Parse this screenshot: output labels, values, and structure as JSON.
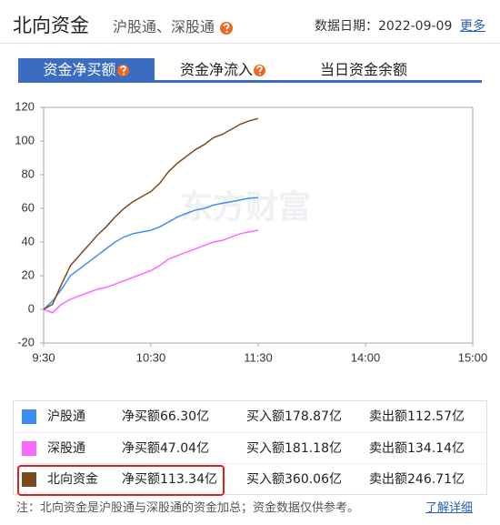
{
  "header": {
    "title": "北向资金",
    "subtitle": "沪股通、深股通",
    "date": "数据日期：2022-09-09",
    "more": "更多"
  },
  "tabs": [
    "资金净买额",
    "资金净流入",
    "当日资金余额"
  ],
  "chart_data": {
    "type": "line",
    "watermark": "东方财富",
    "x": [
      "9:30",
      "9:35",
      "9:40",
      "9:45",
      "9:50",
      "9:55",
      "10:00",
      "10:05",
      "10:10",
      "10:15",
      "10:20",
      "10:25",
      "10:30",
      "10:35",
      "10:40",
      "10:45",
      "10:50",
      "10:55",
      "11:00",
      "11:05",
      "11:10",
      "11:15",
      "11:20",
      "11:25",
      "11:30"
    ],
    "xlim": [
      "9:30",
      "15:00"
    ],
    "xticks": [
      "9:30",
      "10:30",
      "11:30",
      "14:00",
      "15:00"
    ],
    "ylim": [
      -20,
      120
    ],
    "yticks": [
      -20,
      0,
      20,
      40,
      60,
      80,
      100,
      120
    ],
    "series": [
      {
        "name": "沪股通",
        "color": "#3d8ef0",
        "values": [
          0,
          5,
          12,
          20,
          24,
          28,
          32,
          36,
          40,
          43,
          45,
          46,
          47,
          49,
          52,
          55,
          57,
          59,
          60,
          62,
          63,
          64,
          65,
          66,
          66.3
        ]
      },
      {
        "name": "深股通",
        "color": "#ff66ff",
        "values": [
          0,
          -2,
          3,
          6,
          8,
          10,
          12,
          13,
          15,
          17,
          19,
          21,
          23,
          26,
          30,
          32,
          34,
          36,
          38,
          40,
          41,
          43,
          45,
          46,
          47.04
        ]
      },
      {
        "name": "北向资金",
        "color": "#7b4a1e",
        "values": [
          0,
          3,
          15,
          26,
          32,
          38,
          44,
          49,
          55,
          60,
          64,
          67,
          70,
          75,
          82,
          87,
          91,
          95,
          98,
          102,
          104,
          107,
          110,
          112,
          113.34
        ]
      }
    ]
  },
  "table": {
    "rows": [
      {
        "net_label": "净买额",
        "net": "66.30亿",
        "buy_label": "买入额",
        "buy": "178.87亿",
        "sell_label": "卖出额",
        "sell": "112.57亿"
      },
      {
        "net_label": "净买额",
        "net": "47.04亿",
        "buy_label": "买入额",
        "buy": "181.18亿",
        "sell_label": "卖出额",
        "sell": "134.14亿"
      },
      {
        "net_label": "净买额",
        "net": "113.34亿",
        "buy_label": "买入额",
        "buy": "360.06亿",
        "sell_label": "卖出额",
        "sell": "246.71亿"
      }
    ],
    "highlight_row": 2
  },
  "footer": {
    "note": "注：北向资金是沪股通与深股通的资金加总；资金数据仅供参考。",
    "link": "了解详细"
  }
}
